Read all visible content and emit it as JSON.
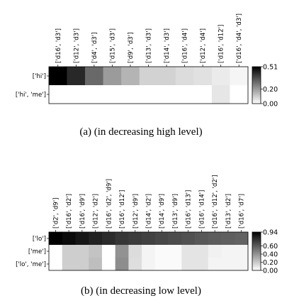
{
  "chart_data": [
    {
      "type": "heatmap",
      "caption": "(a) (in decreasing high level)",
      "x_labels": [
        "['d16', 'd3']",
        "['d12', 'd3']",
        "['d4', 'd3']",
        "['d15', 'd3']",
        "['d9', 'd3']",
        "['d13', 'd3']",
        "['d14', 'd3']",
        "['d16', 'd4']",
        "['d12', 'd4']",
        "['d16', 'd12']",
        "['d16', 'd4', 'd3']"
      ],
      "y_labels": [
        "['hi']",
        "['hi', 'me']"
      ],
      "values": [
        [
          0.51,
          0.43,
          0.3,
          0.2,
          0.15,
          0.09,
          0.09,
          0.07,
          0.06,
          0.04,
          0.02
        ],
        [
          0.0,
          0.0,
          0.0,
          0.0,
          0.0,
          0.0,
          0.0,
          0.0,
          0.0,
          0.05,
          0.0
        ]
      ],
      "vmin": 0.0,
      "vmax": 0.51,
      "colorbar_ticks": [
        "0.51",
        "0.20",
        "0.00"
      ],
      "colorbar_tick_values": [
        0.51,
        0.2,
        0.0
      ],
      "colormap": "gray_r"
    },
    {
      "type": "heatmap",
      "caption": "(b) (in decreasing low level)",
      "x_labels": [
        "['d2', 'd9']",
        "['d16', 'd2']",
        "['d16', 'd9']",
        "['d12', 'd2']",
        "['d16', 'd2', 'd9']",
        "['d16', 'd12']",
        "['d12', 'd9']",
        "['d14', 'd2']",
        "['d14', 'd9']",
        "['d13', 'd9']",
        "['d16', 'd13']",
        "['d16', 'd14']",
        "['d16', 'd12', 'd2']",
        "['d13', 'd2']",
        "['d16', 'd7']"
      ],
      "y_labels": [
        "['lo']",
        "['me']",
        "['lo', 'me']"
      ],
      "values": [
        [
          0.94,
          0.9,
          0.86,
          0.82,
          0.78,
          0.74,
          0.72,
          0.7,
          0.68,
          0.66,
          0.64,
          0.62,
          0.6,
          0.59,
          0.58
        ],
        [
          0.0,
          0.18,
          0.18,
          0.22,
          0.0,
          0.4,
          0.13,
          0.04,
          0.02,
          0.02,
          0.1,
          0.1,
          0.05,
          0.04,
          0.04
        ],
        [
          0.0,
          0.18,
          0.18,
          0.24,
          0.0,
          0.42,
          0.12,
          0.04,
          0.02,
          0.02,
          0.1,
          0.1,
          0.04,
          0.04,
          0.04
        ]
      ],
      "vmin": 0.0,
      "vmax": 0.94,
      "colorbar_ticks": [
        "0.94",
        "0.60",
        "0.40",
        "0.20",
        "0.00"
      ],
      "colorbar_tick_values": [
        0.94,
        0.6,
        0.4,
        0.2,
        0.0
      ],
      "colormap": "gray_r"
    }
  ]
}
